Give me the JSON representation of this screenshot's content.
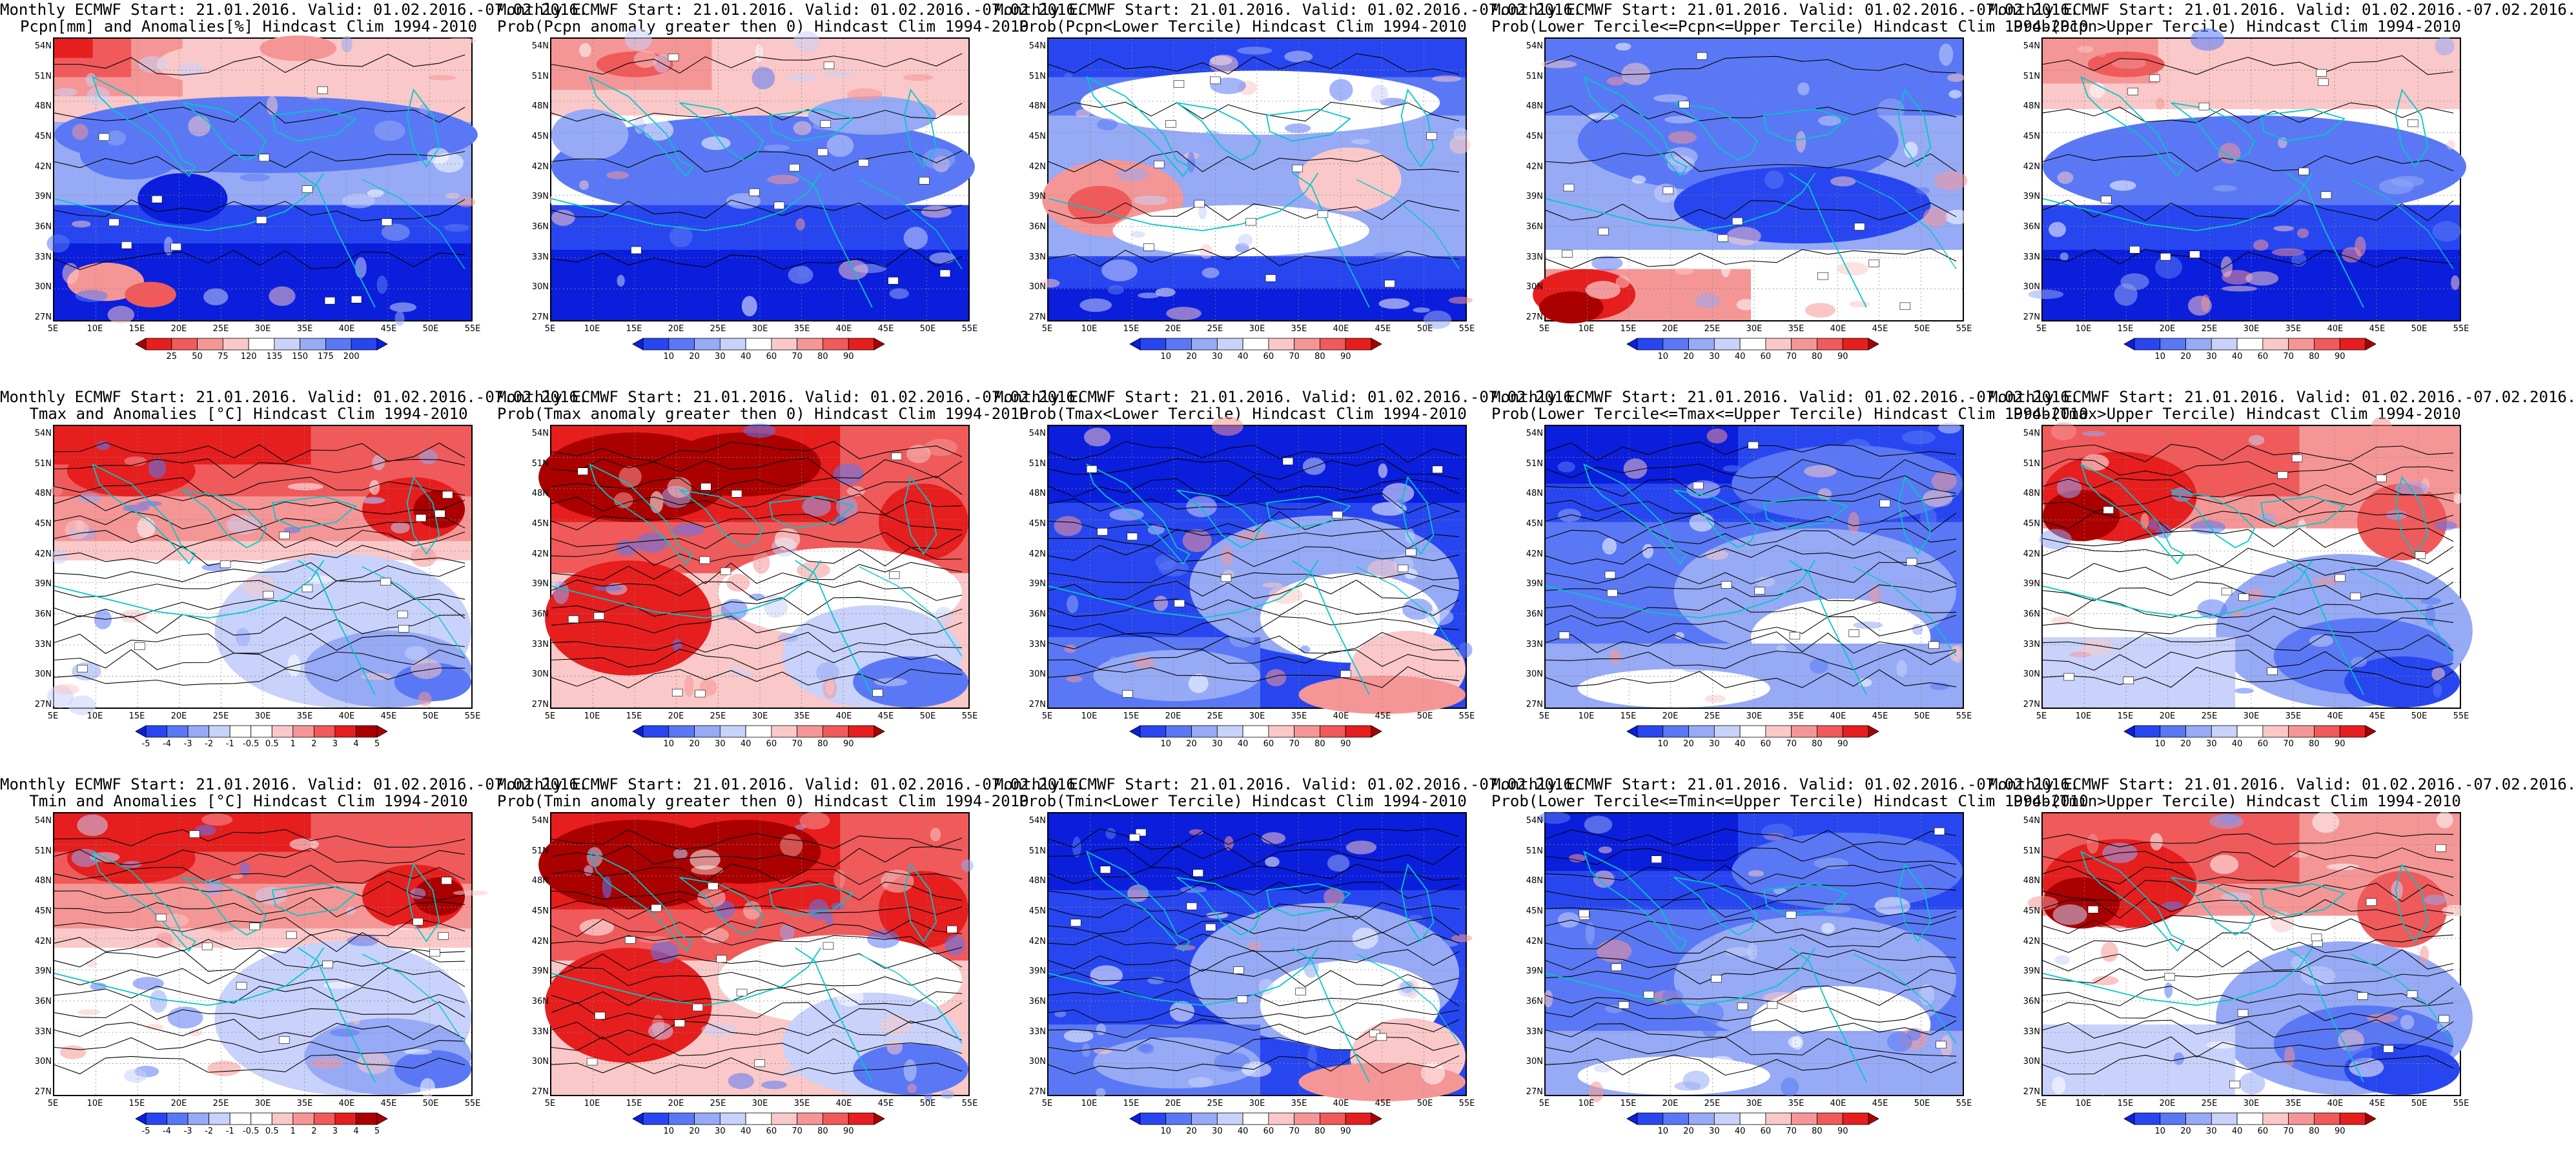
{
  "colors": {
    "deep_blue": "#0a1edc",
    "blue": "#2846f0",
    "mid_blue": "#5a78f5",
    "light_blue": "#96aaf5",
    "pale_blue": "#c8d2fa",
    "white": "#ffffff",
    "pale_red": "#fac8c8",
    "light_red": "#f59696",
    "mid_red": "#f05a5a",
    "red": "#e61e1e",
    "dark_red": "#aa0000",
    "coast": "#00c8c8",
    "contour": "#000000"
  },
  "axes": {
    "lat_labels": [
      "54N",
      "51N",
      "48N",
      "45N",
      "42N",
      "39N",
      "36N",
      "33N",
      "30N",
      "27N"
    ],
    "lon_labels": [
      "5E",
      "10E",
      "15E",
      "20E",
      "25E",
      "30E",
      "35E",
      "40E",
      "45E",
      "50E",
      "55E"
    ]
  },
  "colorbars": {
    "pcpn_anomaly": [
      "25",
      "50",
      "75",
      "120",
      "135",
      "150",
      "175",
      "200"
    ],
    "temp_anomaly": [
      "-5",
      "-4",
      "-3",
      "-2",
      "-1",
      "-0.5",
      "0.5",
      "1",
      "2",
      "3",
      "4",
      "5"
    ],
    "probability": [
      "10",
      "20",
      "30",
      "40",
      "60",
      "70",
      "80",
      "90"
    ]
  },
  "panels": [
    {
      "title1": "Monthly ECMWF Start: 21.01.2016. Valid: 01.02.2016.-07.02.2016.",
      "title2": "Pcpn[mm] and Anomalies[%] Hindcast Clim 1994-2010",
      "colorbar": "pcpn_anomaly",
      "pattern": "pcpn_anom"
    },
    {
      "title1": "Monthly ECMWF Start: 21.01.2016. Valid: 01.02.2016.-07.02.2016.",
      "title2": "Prob(Pcpn anomaly greater then 0) Hindcast Clim 1994-2010",
      "colorbar": "probability",
      "pattern": "pcpn_prob_gt0"
    },
    {
      "title1": "Monthly ECMWF Start: 21.01.2016. Valid: 01.02.2016.-07.02.2016.",
      "title2": "Prob(Pcpn<Lower Tercile) Hindcast Clim 1994-2010",
      "colorbar": "probability",
      "pattern": "pcpn_lower"
    },
    {
      "title1": "Monthly ECMWF Start: 21.01.2016. Valid: 01.02.2016.-07.02.2016.",
      "title2": "Prob(Lower Tercile<=Pcpn<=Upper Tercile) Hindcast Clim 1994-2010",
      "colorbar": "probability",
      "pattern": "pcpn_middle"
    },
    {
      "title1": "Monthly ECMWF Start: 21.01.2016. Valid: 01.02.2016.-07.02.2016.",
      "title2": "Prob(Pcpn>Upper Tercile) Hindcast Clim 1994-2010",
      "colorbar": "probability",
      "pattern": "pcpn_upper"
    },
    {
      "title1": "Monthly ECMWF Start: 21.01.2016. Valid: 01.02.2016.-07.02.2016.",
      "title2": "Tmax and Anomalies [°C] Hindcast Clim 1994-2010",
      "colorbar": "temp_anomaly",
      "pattern": "warm_north"
    },
    {
      "title1": "Monthly ECMWF Start: 21.01.2016. Valid: 01.02.2016.-07.02.2016.",
      "title2": "Prob(Tmax anomaly greater then 0) Hindcast Clim 1994-2010",
      "colorbar": "probability",
      "pattern": "warm_strong"
    },
    {
      "title1": "Monthly ECMWF Start: 21.01.2016. Valid: 01.02.2016.-07.02.2016.",
      "title2": "Prob(Tmax<Lower Tercile) Hindcast Clim 1994-2010",
      "colorbar": "probability",
      "pattern": "cold_lower"
    },
    {
      "title1": "Monthly ECMWF Start: 21.01.2016. Valid: 01.02.2016.-07.02.2016.",
      "title2": "Prob(Lower Tercile<=Tmax<=Upper Tercile) Hindcast Clim 1994-2010",
      "colorbar": "probability",
      "pattern": "middle_blue"
    },
    {
      "title1": "Monthly ECMWF Start: 21.01.2016. Valid: 01.02.2016.-07.02.2016.",
      "title2": "Prob(Tmax>Upper Tercile) Hindcast Clim 1994-2010",
      "colorbar": "probability",
      "pattern": "warm_upper"
    },
    {
      "title1": "Monthly ECMWF Start: 21.01.2016. Valid: 01.02.2016.-07.02.2016.",
      "title2": "Tmin and Anomalies [°C] Hindcast Clim 1994-2010",
      "colorbar": "temp_anomaly",
      "pattern": "warm_north"
    },
    {
      "title1": "Monthly ECMWF Start: 21.01.2016. Valid: 01.02.2016.-07.02.2016.",
      "title2": "Prob(Tmin anomaly greater then 0) Hindcast Clim 1994-2010",
      "colorbar": "probability",
      "pattern": "warm_strong"
    },
    {
      "title1": "Monthly ECMWF Start: 21.01.2016. Valid: 01.02.2016.-07.02.2016.",
      "title2": "Prob(Tmin<Lower Tercile) Hindcast Clim 1994-2010",
      "colorbar": "probability",
      "pattern": "cold_lower"
    },
    {
      "title1": "Monthly ECMWF Start: 21.01.2016. Valid: 01.02.2016.-07.02.2016.",
      "title2": "Prob(Lower Tercile<=Tmin<=Upper Tercile) Hindcast Clim 1994-2010",
      "colorbar": "probability",
      "pattern": "middle_blue"
    },
    {
      "title1": "Monthly ECMWF Start: 21.01.2016. Valid: 01.02.2016.-07.02.2016.",
      "title2": "Prob(Tmin>Upper Tercile) Hindcast Clim 1994-2010",
      "colorbar": "probability",
      "pattern": "warm_upper"
    }
  ]
}
